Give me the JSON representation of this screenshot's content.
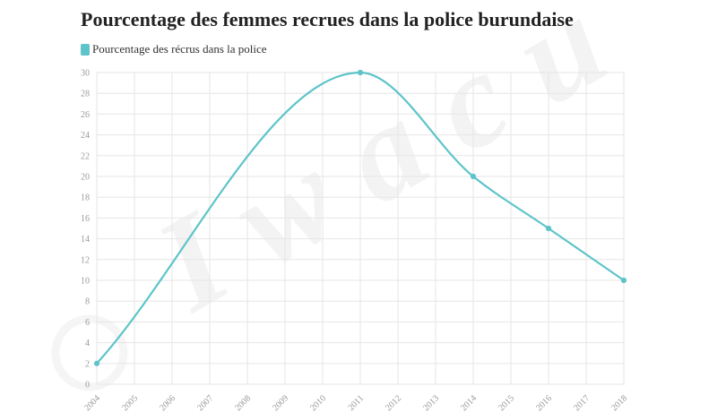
{
  "chart_data": {
    "type": "line",
    "title": "Pourcentage des femmes recrues dans la police burundaise",
    "categories": [
      "2004",
      "2005",
      "2006",
      "2007",
      "2008",
      "2009",
      "2010",
      "2011",
      "2012",
      "2013",
      "2014",
      "2015",
      "2016",
      "2017",
      "2018"
    ],
    "series": [
      {
        "name": "Pourcentage des récrus dans la police",
        "points": [
          {
            "x": "2004",
            "y": 2
          },
          {
            "x": "2011",
            "y": 30
          },
          {
            "x": "2014",
            "y": 20
          },
          {
            "x": "2016",
            "y": 15
          },
          {
            "x": "2018",
            "y": 10
          }
        ]
      }
    ],
    "yticks": [
      0,
      2,
      4,
      6,
      8,
      10,
      12,
      14,
      16,
      18,
      20,
      22,
      24,
      26,
      28,
      30
    ],
    "ylim": [
      0,
      30
    ],
    "grid": true,
    "legend_position": "top-left",
    "xlabel": "",
    "ylabel": "",
    "colors": {
      "series": "#5ec4c9",
      "grid": "#e6e6e6",
      "tick": "#999999"
    }
  },
  "watermark": {
    "text": "Iwacu"
  }
}
